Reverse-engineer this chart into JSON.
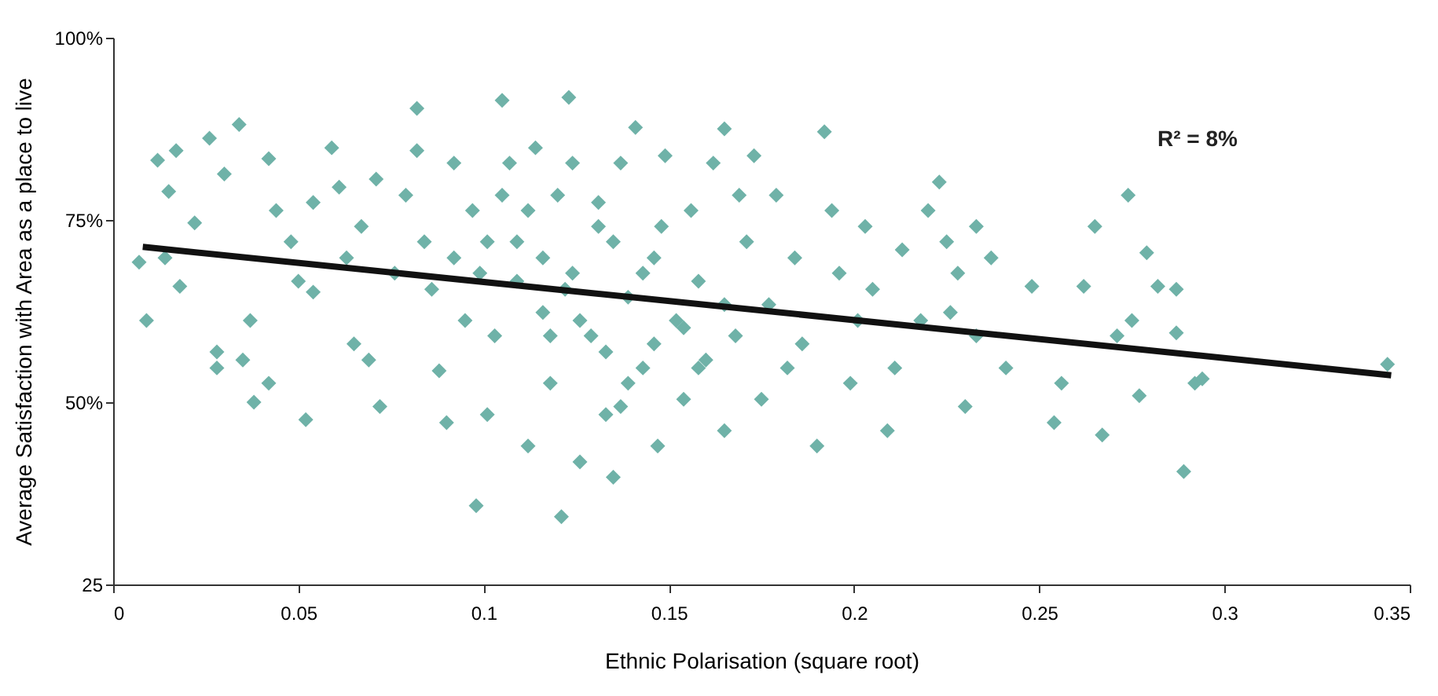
{
  "chart_data": {
    "type": "scatter",
    "xlabel": "Ethnic Polarisation (square root)",
    "ylabel": "Average Satisfaction with Area as a place to live",
    "xlim": [
      0,
      0.35
    ],
    "xticks": [
      0,
      0.05,
      0.1,
      0.15,
      0.2,
      0.25,
      0.3,
      0.35
    ],
    "ylim": [
      25,
      100
    ],
    "yticks": [
      {
        "value": 25,
        "label": "25"
      },
      {
        "value": 50,
        "label": "50%"
      },
      {
        "value": 75,
        "label": "75%"
      },
      {
        "value": 100,
        "label": "100%"
      }
    ],
    "grid": false,
    "marker": "diamond",
    "annotations": [
      "R² = 8%"
    ],
    "series": [
      {
        "type": "scatter",
        "color": "#6fb2a8",
        "x": [
          0.007,
          0.009,
          0.012,
          0.017,
          0.015,
          0.026,
          0.034,
          0.03,
          0.042,
          0.014,
          0.018,
          0.022,
          0.028,
          0.028,
          0.035,
          0.038,
          0.042,
          0.052,
          0.037,
          0.048,
          0.054,
          0.059,
          0.054,
          0.063,
          0.065,
          0.069,
          0.071,
          0.072,
          0.082,
          0.082,
          0.079,
          0.084,
          0.086,
          0.088,
          0.09,
          0.092,
          0.095,
          0.097,
          0.099,
          0.098,
          0.101,
          0.103,
          0.105,
          0.107,
          0.109,
          0.112,
          0.116,
          0.118,
          0.12,
          0.123,
          0.121,
          0.124,
          0.126,
          0.129,
          0.131,
          0.133,
          0.135,
          0.137,
          0.139,
          0.141,
          0.143,
          0.146,
          0.147,
          0.149,
          0.152,
          0.154,
          0.156,
          0.158,
          0.16,
          0.162,
          0.165,
          0.165,
          0.168,
          0.171,
          0.173,
          0.175,
          0.177,
          0.179,
          0.182,
          0.184,
          0.186,
          0.19,
          0.192,
          0.194,
          0.196,
          0.199,
          0.201,
          0.203,
          0.205,
          0.209,
          0.211,
          0.213,
          0.218,
          0.22,
          0.223,
          0.225,
          0.226,
          0.228,
          0.23,
          0.233,
          0.233,
          0.237,
          0.241,
          0.248,
          0.254,
          0.256,
          0.262,
          0.265,
          0.267,
          0.271,
          0.274,
          0.275,
          0.277,
          0.279,
          0.282,
          0.287,
          0.287,
          0.289,
          0.292,
          0.294,
          0.344,
          0.105,
          0.112,
          0.116,
          0.122,
          0.126,
          0.133,
          0.139,
          0.143,
          0.148,
          0.154,
          0.158,
          0.118,
          0.109,
          0.101,
          0.092,
          0.076,
          0.067,
          0.05,
          0.044,
          0.061,
          0.169,
          0.165,
          0.135,
          0.131,
          0.124,
          0.114,
          0.137,
          0.146
        ],
        "values": [
          69.2,
          61.2,
          83.2,
          84.5,
          78.9,
          86.2,
          88.1,
          81.3,
          83.4,
          69.8,
          65.9,
          74.6,
          56.9,
          54.7,
          55.8,
          50.0,
          52.6,
          47.6,
          61.2,
          72.0,
          77.4,
          84.9,
          65.1,
          69.8,
          58.0,
          55.8,
          80.6,
          49.4,
          84.5,
          90.3,
          78.4,
          72.0,
          65.5,
          54.3,
          47.2,
          82.8,
          61.2,
          76.3,
          67.7,
          35.8,
          48.3,
          59.1,
          91.4,
          82.8,
          72.0,
          44.0,
          62.3,
          52.6,
          78.4,
          91.8,
          34.3,
          67.7,
          41.8,
          59.1,
          74.1,
          48.3,
          39.7,
          82.8,
          64.4,
          87.7,
          54.7,
          69.8,
          44.0,
          83.8,
          61.2,
          50.4,
          76.3,
          66.6,
          55.8,
          82.8,
          87.5,
          46.1,
          59.1,
          72.0,
          83.8,
          50.4,
          63.4,
          78.4,
          54.7,
          69.8,
          58.0,
          44.0,
          87.1,
          76.3,
          67.7,
          52.6,
          61.2,
          74.1,
          65.5,
          46.1,
          54.7,
          70.9,
          61.2,
          76.3,
          80.2,
          72.0,
          62.3,
          67.7,
          49.4,
          74.1,
          59.1,
          69.8,
          54.7,
          65.9,
          47.2,
          52.6,
          65.9,
          74.1,
          45.5,
          59.1,
          78.4,
          61.2,
          50.9,
          70.5,
          65.9,
          59.5,
          65.5,
          40.5,
          52.6,
          53.2,
          55.2,
          78.4,
          76.3,
          69.8,
          65.5,
          61.2,
          56.9,
          52.6,
          67.7,
          74.1,
          60.2,
          54.7,
          59.1,
          66.6,
          72.0,
          69.8,
          67.7,
          74.1,
          66.6,
          76.3,
          79.5,
          78.4,
          63.4,
          72.0,
          77.4,
          82.8,
          84.9,
          49.4,
          58.0
        ]
      },
      {
        "type": "line",
        "marker": "none",
        "color": "#111111",
        "x": [
          0.008,
          0.345
        ],
        "values": [
          71.3,
          53.7
        ]
      }
    ]
  }
}
